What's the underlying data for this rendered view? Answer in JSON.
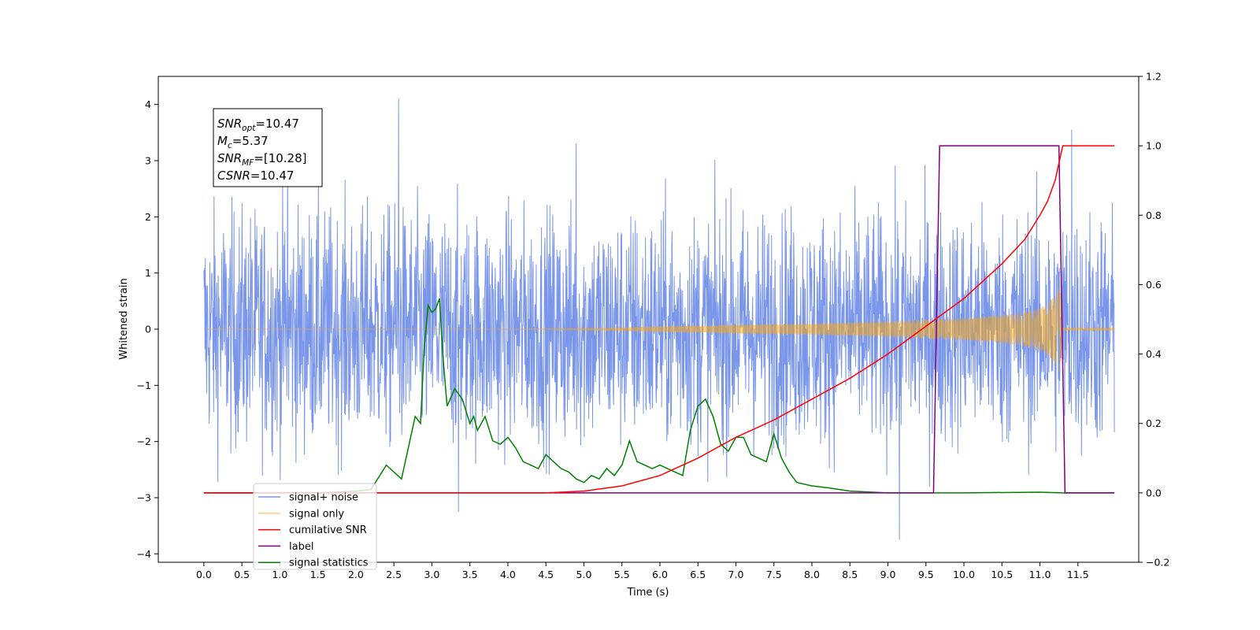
{
  "chart_data": {
    "type": "line",
    "title": "",
    "xlabel": "Time (s)",
    "ylabel": "Whitened strain",
    "y2label": "",
    "xlim": [
      -0.6,
      12.3
    ],
    "ylim": [
      -4.15,
      4.5
    ],
    "y2lim": [
      -0.2,
      1.2
    ],
    "x_ticks": [
      0.0,
      0.5,
      1.0,
      1.5,
      2.0,
      2.5,
      3.0,
      3.5,
      4.0,
      4.5,
      5.0,
      5.5,
      6.0,
      6.5,
      7.0,
      7.5,
      8.0,
      8.5,
      9.0,
      9.5,
      10.0,
      10.5,
      11.0,
      11.5
    ],
    "x_tick_labels": [
      "0.0",
      "0.5",
      "1.0",
      "1.5",
      "2.0",
      "2.5",
      "3.0",
      "3.5",
      "4.0",
      "4.5",
      "5.0",
      "5.5",
      "6.0",
      "6.5",
      "7.0",
      "7.5",
      "8.0",
      "8.5",
      "9.0",
      "9.5",
      "10.0",
      "10.5",
      "11.0",
      "11.5"
    ],
    "y_ticks": [
      -4,
      -3,
      -2,
      -1,
      0,
      1,
      2,
      3,
      4
    ],
    "y_tick_labels": [
      "−4",
      "−3",
      "−2",
      "−1",
      "0",
      "1",
      "2",
      "3",
      "4"
    ],
    "y2_ticks": [
      -0.2,
      0.0,
      0.2,
      0.4,
      0.6,
      0.8,
      1.0,
      1.2
    ],
    "y2_tick_labels": [
      "−0.2",
      "0.0",
      "0.2",
      "0.4",
      "0.6",
      "0.8",
      "1.0",
      "1.2"
    ],
    "grid": false,
    "legend_position": "lower-left",
    "annotation": [
      {
        "base": "SNR",
        "sub": "opt",
        "value": "=10.47"
      },
      {
        "base": "M",
        "sub": "c",
        "value": "=5.37"
      },
      {
        "base": "SNR",
        "sub": "MF",
        "value": "=[10.28]"
      },
      {
        "base": "CSNR",
        "sub": "",
        "value": "=10.47"
      }
    ],
    "series": [
      {
        "name": "signal+ noise",
        "axis": "left",
        "color": "#4169e1",
        "kind": "noise",
        "x_range": [
          0.0,
          11.98
        ],
        "amplitude_envelope": {
          "x": [
            0.0,
            12.0
          ],
          "y": [
            3.6,
            3.6
          ]
        },
        "peaks": {
          "x": [
            2.56,
            9.15,
            11.42,
            1.1,
            3.35,
            4.9
          ],
          "y": [
            4.1,
            -3.75,
            3.55,
            3.2,
            -3.25,
            3.3
          ]
        }
      },
      {
        "name": "signal only",
        "axis": "left",
        "color": "#ffa500",
        "kind": "chirp",
        "x": [
          0.0,
          4.0,
          5.0,
          6.0,
          7.0,
          8.0,
          9.0,
          9.5,
          10.0,
          10.5,
          10.8,
          11.0,
          11.1,
          11.2,
          11.27,
          11.3,
          11.98
        ],
        "envelope": [
          0.0,
          0.0,
          0.01,
          0.05,
          0.08,
          0.1,
          0.14,
          0.17,
          0.2,
          0.25,
          0.3,
          0.38,
          0.45,
          0.6,
          0.8,
          0.03,
          0.03
        ]
      },
      {
        "name": "cumilative SNR",
        "axis": "right",
        "color": "#ff0000",
        "x": [
          0.0,
          4.5,
          5.0,
          5.5,
          6.0,
          6.5,
          7.0,
          7.5,
          8.0,
          8.5,
          9.0,
          9.5,
          10.0,
          10.5,
          10.8,
          11.0,
          11.1,
          11.2,
          11.27,
          11.3,
          11.98
        ],
        "values": [
          0.0,
          0.0,
          0.005,
          0.02,
          0.05,
          0.1,
          0.16,
          0.21,
          0.27,
          0.33,
          0.4,
          0.48,
          0.56,
          0.66,
          0.73,
          0.8,
          0.84,
          0.9,
          0.97,
          1.0,
          1.0
        ]
      },
      {
        "name": "label",
        "axis": "right",
        "color": "#800080",
        "x": [
          0.0,
          9.6,
          9.68,
          11.25,
          11.33,
          11.98
        ],
        "values": [
          0.0,
          0.0,
          1.0,
          1.0,
          0.0,
          0.0
        ]
      },
      {
        "name": "signal statistics",
        "axis": "right",
        "color": "#008000",
        "x": [
          0.0,
          1.5,
          2.0,
          2.2,
          2.4,
          2.5,
          2.6,
          2.7,
          2.78,
          2.85,
          2.9,
          2.95,
          3.0,
          3.05,
          3.1,
          3.15,
          3.2,
          3.3,
          3.4,
          3.5,
          3.55,
          3.6,
          3.7,
          3.8,
          3.9,
          4.0,
          4.1,
          4.2,
          4.3,
          4.4,
          4.5,
          4.6,
          4.7,
          4.8,
          4.9,
          5.0,
          5.1,
          5.2,
          5.3,
          5.4,
          5.5,
          5.6,
          5.7,
          5.8,
          5.9,
          6.0,
          6.1,
          6.2,
          6.3,
          6.4,
          6.5,
          6.6,
          6.7,
          6.8,
          6.9,
          7.0,
          7.1,
          7.2,
          7.3,
          7.4,
          7.5,
          7.6,
          7.7,
          7.8,
          8.0,
          8.2,
          8.5,
          9.0,
          10.0,
          11.0,
          11.3,
          11.98
        ],
        "values": [
          0.0,
          0.0,
          0.005,
          0.01,
          0.08,
          0.06,
          0.04,
          0.14,
          0.22,
          0.2,
          0.42,
          0.54,
          0.52,
          0.53,
          0.56,
          0.38,
          0.25,
          0.3,
          0.27,
          0.2,
          0.22,
          0.18,
          0.22,
          0.15,
          0.14,
          0.16,
          0.13,
          0.09,
          0.08,
          0.07,
          0.11,
          0.09,
          0.07,
          0.06,
          0.04,
          0.03,
          0.05,
          0.04,
          0.07,
          0.05,
          0.08,
          0.15,
          0.09,
          0.08,
          0.07,
          0.08,
          0.07,
          0.06,
          0.05,
          0.18,
          0.25,
          0.27,
          0.22,
          0.14,
          0.12,
          0.16,
          0.16,
          0.11,
          0.1,
          0.09,
          0.17,
          0.1,
          0.06,
          0.03,
          0.02,
          0.015,
          0.005,
          0.0,
          0.0,
          0.002,
          0.0,
          0.0
        ]
      }
    ]
  }
}
